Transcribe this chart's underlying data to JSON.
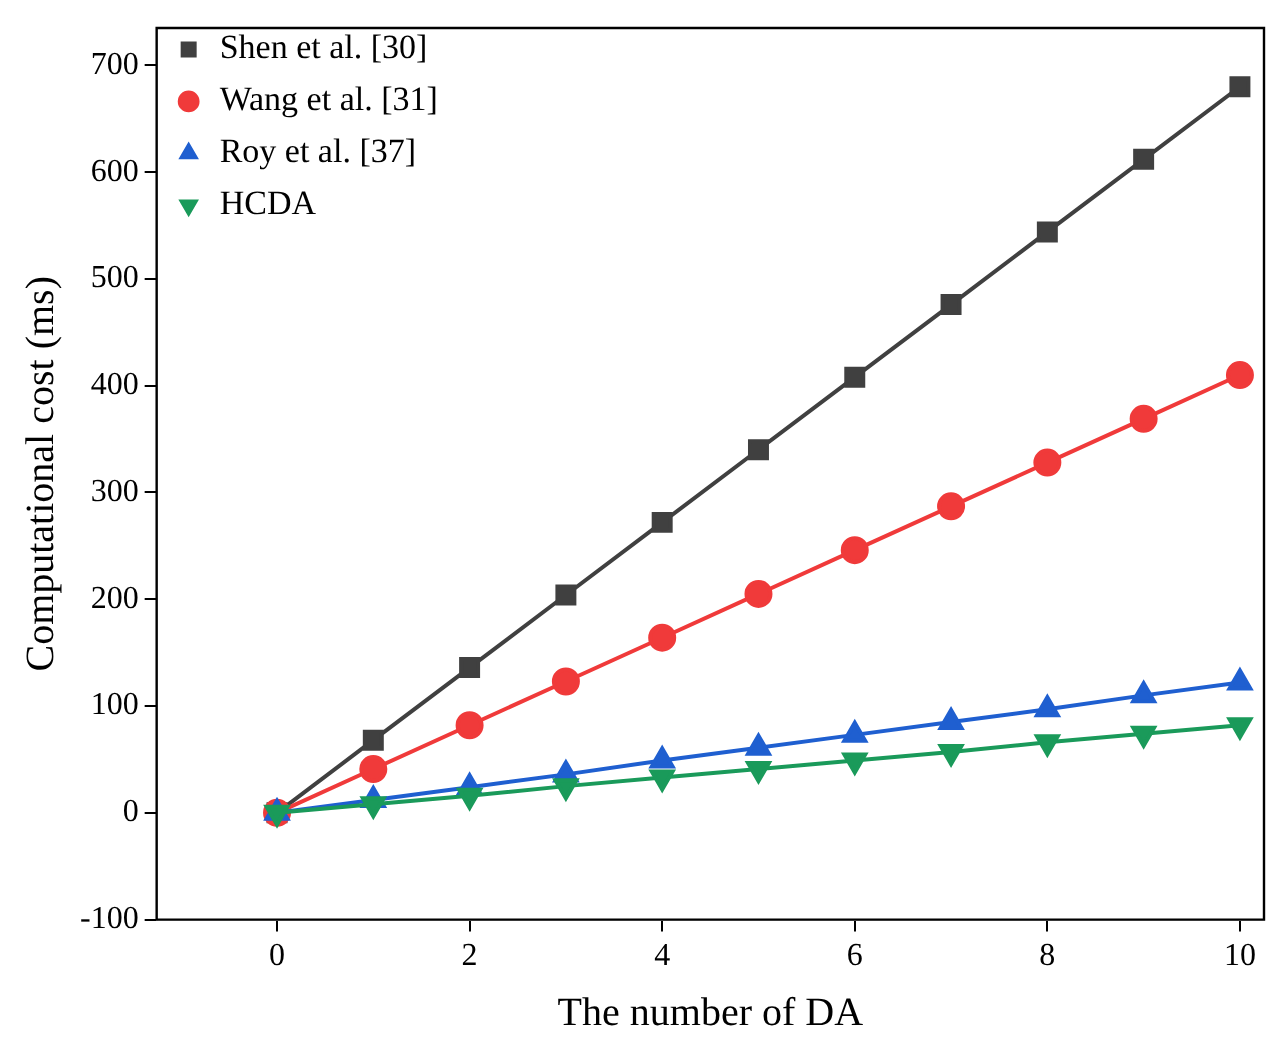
{
  "chart_data": {
    "type": "line",
    "xlabel": "The number of DA",
    "ylabel": "Computational cost (ms)",
    "x": [
      0,
      1,
      2,
      3,
      4,
      5,
      6,
      7,
      8,
      9,
      10
    ],
    "series": [
      {
        "name": "Shen et al. [30]",
        "color": "#404040",
        "marker": "square",
        "values": [
          0,
          68,
          136,
          204,
          272,
          340,
          408,
          476,
          544,
          612,
          680
        ]
      },
      {
        "name": "Wang et al. [31]",
        "color": "#f03a3a",
        "marker": "circle",
        "values": [
          0,
          41,
          82,
          123,
          164,
          205,
          246,
          287,
          328,
          369,
          410
        ]
      },
      {
        "name": "Roy et al. [37]",
        "color": "#1f5fd0",
        "marker": "triangle",
        "values": [
          0,
          12,
          24,
          36,
          49,
          61,
          73,
          85,
          97,
          110,
          122
        ]
      },
      {
        "name": "HCDA",
        "color": "#1a9a5a",
        "marker": "triangle-down",
        "values": [
          0,
          8,
          16,
          25,
          33,
          41,
          49,
          57,
          66,
          74,
          82
        ]
      }
    ],
    "xlim": [
      -1.25,
      10.25
    ],
    "xticks": [
      0,
      2,
      4,
      6,
      8,
      10
    ],
    "ylim": [
      -100,
      735
    ],
    "yticks": [
      -100,
      0,
      100,
      200,
      300,
      400,
      500,
      600,
      700
    ],
    "grid": false,
    "legend": "top left",
    "line_style": "solid"
  }
}
